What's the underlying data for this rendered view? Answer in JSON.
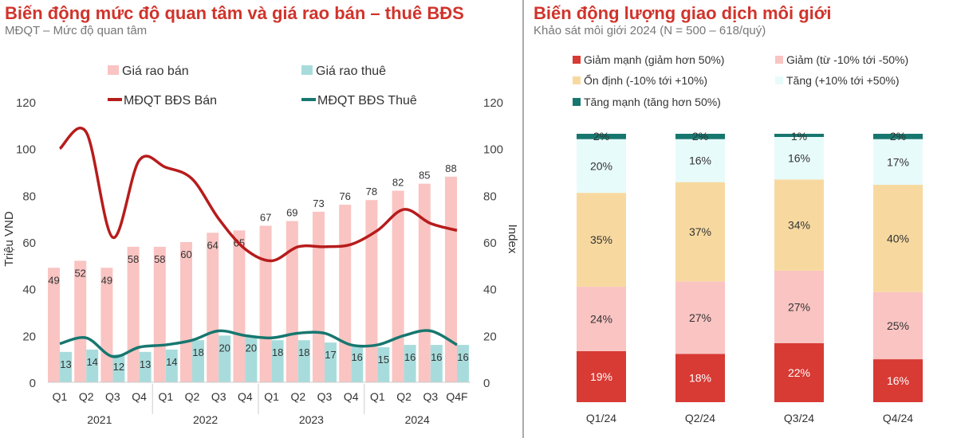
{
  "chart_data": [
    {
      "type": "bar+line",
      "title": "Biến động mức độ quan tâm và giá rao bán – thuê BĐS",
      "subtitle": "MĐQT – Mức độ quan tâm",
      "categories": [
        "Q1",
        "Q2",
        "Q3",
        "Q4",
        "Q1",
        "Q2",
        "Q3",
        "Q4",
        "Q1",
        "Q2",
        "Q3",
        "Q4",
        "Q1",
        "Q2",
        "Q3",
        "Q4F"
      ],
      "years": [
        "2021",
        "2022",
        "2023",
        "2024"
      ],
      "ylabel": "Triệu VND",
      "y2label": "Index",
      "ylim": [
        0,
        120
      ],
      "y2lim": [
        0,
        120
      ],
      "yticks": [
        "0",
        "20",
        "40",
        "60",
        "80",
        "100",
        "120"
      ],
      "legend": "top",
      "series": [
        {
          "name": "Giá rao bán",
          "type": "bar",
          "color": "#f9c4c2",
          "values": [
            49,
            52,
            49,
            58,
            58,
            60,
            64,
            65,
            67,
            69,
            73,
            76,
            78,
            82,
            85,
            88
          ]
        },
        {
          "name": "Giá rao thuê",
          "type": "bar",
          "color": "#a8dcdc",
          "values": [
            13,
            14,
            12,
            13,
            14,
            18,
            20,
            20,
            18,
            18,
            17,
            16,
            15,
            16,
            16,
            16
          ]
        },
        {
          "name": "MĐQT BĐS Bán",
          "type": "line",
          "color": "#b71c1c",
          "values": [
            100,
            107,
            62,
            95,
            92,
            87,
            70,
            57,
            52,
            58,
            58,
            59,
            65,
            74,
            68,
            65
          ]
        },
        {
          "name": "MĐQT BĐS Thuê",
          "type": "line",
          "color": "#17776f",
          "values": [
            16.5,
            19,
            11,
            15,
            16,
            18,
            22,
            20,
            19,
            21,
            21,
            16,
            16,
            20,
            22,
            16
          ]
        }
      ]
    },
    {
      "type": "stacked-bar",
      "title": "Biến động lượng giao dịch môi giới",
      "subtitle": "Khảo sát môi giới 2024 (N = 500 – 618/quý)",
      "categories": [
        "Q1/24",
        "Q2/24",
        "Q3/24",
        "Q4/24"
      ],
      "legend": "top",
      "series": [
        {
          "name": "Giảm mạnh (giảm hơn 50%)",
          "color": "#d83a34",
          "values": [
            19,
            18,
            22,
            16
          ]
        },
        {
          "name": "Giảm (từ -10% tới -50%)",
          "color": "#f9c4c2",
          "values": [
            24,
            27,
            27,
            25
          ]
        },
        {
          "name": "Ổn định (-10% tới +10%)",
          "color": "#f7d9a0",
          "values": [
            35,
            37,
            34,
            40
          ]
        },
        {
          "name": "Tăng (+10% tới +50%)",
          "color": "#e8fbfb",
          "values": [
            20,
            16,
            16,
            17
          ]
        },
        {
          "name": "Tăng mạnh (tăng hơn 50%)",
          "color": "#17776f",
          "values": [
            2,
            2,
            1,
            2
          ]
        }
      ]
    }
  ]
}
